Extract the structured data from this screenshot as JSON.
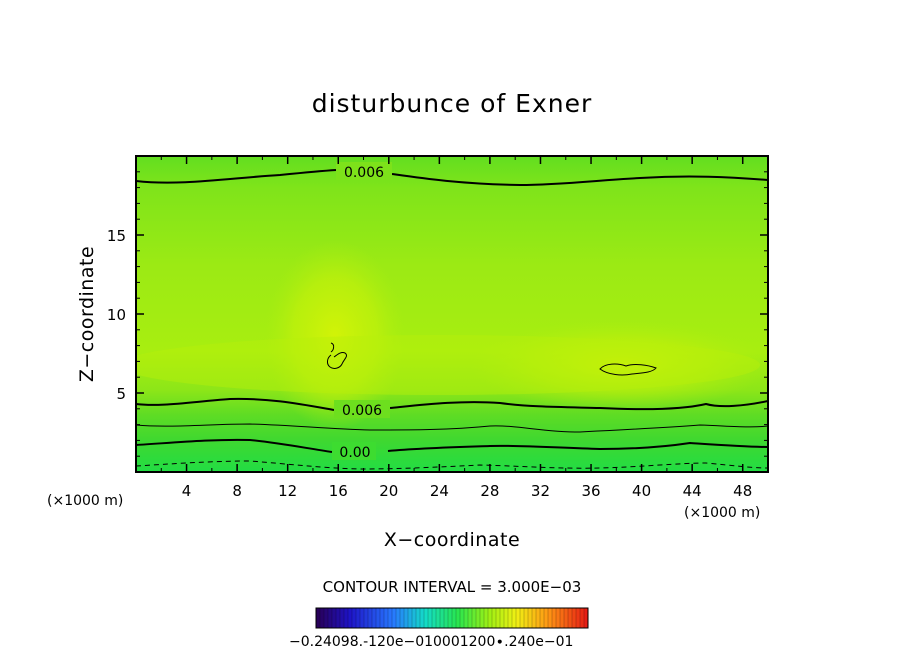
{
  "chart_data": {
    "type": "heatmap",
    "title": "disturbunce of Exner",
    "xlabel": "X−coordinate",
    "ylabel": "Z−coordinate",
    "x_unit": "(×1000 m)",
    "y_unit": "(×1000 m)",
    "xlim": [
      0,
      50
    ],
    "ylim": [
      0,
      20
    ],
    "x_ticks": [
      4,
      8,
      12,
      16,
      20,
      24,
      28,
      32,
      36,
      40,
      44,
      48
    ],
    "x_tick_labels": [
      "4",
      "8",
      "12",
      "16",
      "20",
      "24",
      "28",
      "32",
      "36",
      "40",
      "44",
      "48"
    ],
    "y_ticks": [
      5,
      10,
      15
    ],
    "y_tick_labels": [
      "5",
      "10",
      "15"
    ],
    "contour_interval_text": "CONTOUR INTERVAL = 3.000E−03",
    "contour_labels": [
      {
        "text": "0.006",
        "x": 16.5,
        "z": 18.7
      },
      {
        "text": "0.006",
        "x": 16.3,
        "z": 3.8
      },
      {
        "text": "0.00",
        "x": 16.3,
        "z": 1.4
      }
    ],
    "colorbar": {
      "tick_labels": [
        "−0.240",
        "−0.120e−01",
        "0.000",
        "0.120e−01",
        "0.240e−01"
      ],
      "label_text": "−0.24098.‐120e−010001200∙.240e−01"
    }
  },
  "colors": {
    "field_top": "#66e21a",
    "field_mid": "#a6ee10",
    "field_core": "#cdf308",
    "field_low": "#4fdc26",
    "field_bottom": "#2ee23c"
  }
}
